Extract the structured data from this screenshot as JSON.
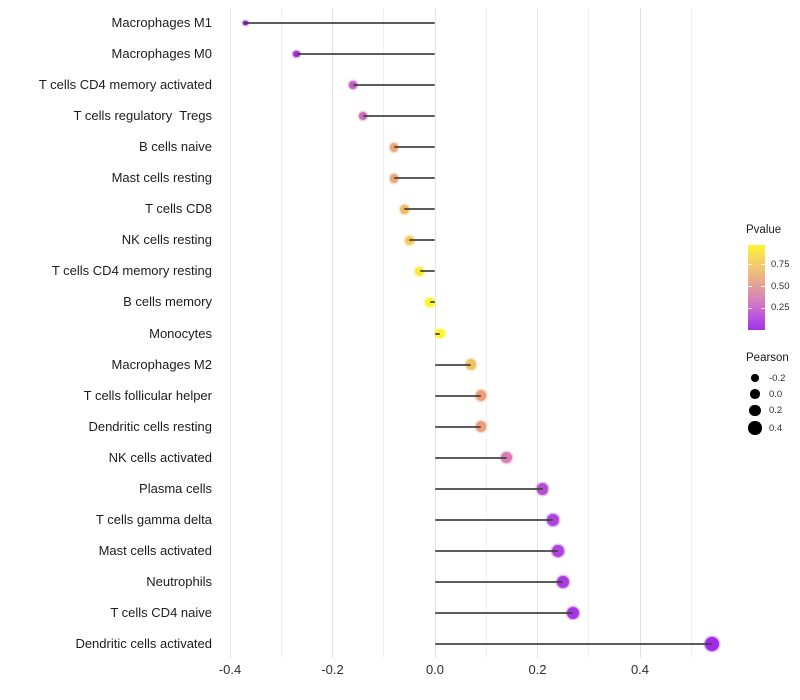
{
  "chart_data": {
    "type": "scatter",
    "style": "lollipop",
    "orientation": "horizontal",
    "title": "",
    "xlabel": "",
    "ylabel": "",
    "xlim": [
      -0.42,
      0.58
    ],
    "grid": true,
    "legend_position": "right",
    "x_major_ticks": [
      -0.4,
      -0.2,
      0.0,
      0.2,
      0.4
    ],
    "x_major_tick_labels": [
      "-0.4",
      "-0.2",
      "0.0",
      "0.2",
      "0.4"
    ],
    "x_minor_ticks": [
      -0.3,
      -0.1,
      0.1,
      0.3,
      0.5
    ],
    "segment_color": "#3f3f3f",
    "points": [
      {
        "label": "Macrophages M1",
        "pearson": -0.37,
        "color": "#7e1fb4"
      },
      {
        "label": "Macrophages M0",
        "pearson": -0.27,
        "color": "#9c2fd2"
      },
      {
        "label": "T cells CD4 memory activated",
        "pearson": -0.16,
        "color": "#c45ec4"
      },
      {
        "label": "T cells regulatory  Tregs",
        "pearson": -0.14,
        "color": "#cb6cb8"
      },
      {
        "label": "B cells naive",
        "pearson": -0.08,
        "color": "#e9a878"
      },
      {
        "label": "Mast cells resting",
        "pearson": -0.08,
        "color": "#e9a878"
      },
      {
        "label": "T cells CD8",
        "pearson": -0.06,
        "color": "#efba62"
      },
      {
        "label": "NK cells resting",
        "pearson": -0.05,
        "color": "#f3cb55"
      },
      {
        "label": "T cells CD4 memory resting",
        "pearson": -0.03,
        "color": "#f9e838"
      },
      {
        "label": "B cells memory",
        "pearson": -0.01,
        "color": "#fdf42c"
      },
      {
        "label": "Monocytes",
        "pearson": 0.01,
        "color": "#fdf42c"
      },
      {
        "label": "Macrophages M2",
        "pearson": 0.07,
        "color": "#f0c266"
      },
      {
        "label": "T cells follicular helper",
        "pearson": 0.09,
        "color": "#ec9d78"
      },
      {
        "label": "Dendritic cells resting",
        "pearson": 0.09,
        "color": "#ec9d78"
      },
      {
        "label": "NK cells activated",
        "pearson": 0.14,
        "color": "#d87cb2"
      },
      {
        "label": "Plasma cells",
        "pearson": 0.21,
        "color": "#b450cc"
      },
      {
        "label": "T cells gamma delta",
        "pearson": 0.23,
        "color": "#ad43da"
      },
      {
        "label": "Mast cells activated",
        "pearson": 0.24,
        "color": "#ad43da"
      },
      {
        "label": "Neutrophils",
        "pearson": 0.25,
        "color": "#a93ae0"
      },
      {
        "label": "T cells CD4 naive",
        "pearson": 0.27,
        "color": "#a636e3"
      },
      {
        "label": "Dendritic cells activated",
        "pearson": 0.54,
        "color": "#9f2ae9"
      }
    ],
    "color_legend": {
      "title": "Pvalue",
      "tick_labels": [
        "0.75",
        "0.50",
        "0.25"
      ],
      "gradient_stops": [
        "#fcf531",
        "#f5d55e",
        "#eebb7c",
        "#e09d9d",
        "#d67cc2",
        "#bc55dd",
        "#a133e8"
      ],
      "range": [
        0,
        1
      ]
    },
    "size_legend": {
      "title": "Pearson",
      "tick_labels": [
        "-0.2",
        "0.0",
        "0.2",
        "0.4"
      ],
      "tick_values": [
        -0.2,
        0.0,
        0.2,
        0.4
      ],
      "dot_color": "#000000"
    }
  }
}
